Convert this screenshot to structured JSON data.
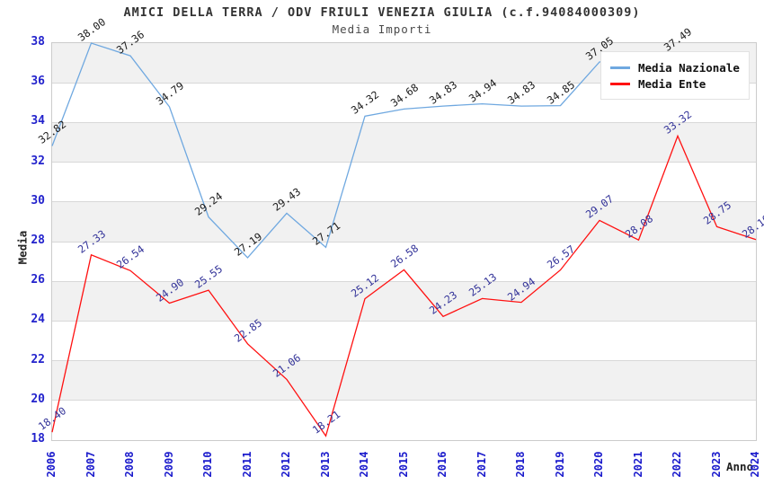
{
  "header": {
    "title": "AMICI DELLA TERRA / ODV FRIULI VENEZIA GIULIA (c.f.94084000309)",
    "subtitle": "Media Importi"
  },
  "axes": {
    "y_label": "Media",
    "x_label": "Anno",
    "y_ticks": [
      38,
      36,
      34,
      32,
      30,
      28,
      26,
      24,
      22,
      20,
      18
    ]
  },
  "legend": {
    "items": [
      {
        "label": "Media Nazionale",
        "color": "#6FA8E0"
      },
      {
        "label": "Media Ente",
        "color": "#FF1111"
      }
    ]
  },
  "colors": {
    "nazionale_line": "#6FA8E0",
    "ente_line": "#FF1111",
    "nazionale_label_text": "#1a1a1a",
    "ente_label_text": "#333399",
    "tick_text": "#2222cc",
    "band_gray": "#f1f1f1",
    "gridline": "#d8d8d8"
  },
  "chart_data": {
    "type": "line",
    "title": "AMICI DELLA TERRA / ODV FRIULI VENEZIA GIULIA (c.f.94084000309)",
    "subtitle": "Media Importi",
    "xlabel": "Anno",
    "ylabel": "Media",
    "ylim": [
      18,
      38
    ],
    "grid": true,
    "legend_position": "top-right",
    "categories": [
      2006,
      2007,
      2008,
      2009,
      2010,
      2011,
      2012,
      2013,
      2014,
      2015,
      2016,
      2017,
      2018,
      2019,
      2020,
      2021,
      2022,
      2023,
      2024
    ],
    "series": [
      {
        "name": "Media Nazionale",
        "color": "#6FA8E0",
        "label_color": "#1a1a1a",
        "values": [
          32.82,
          38.0,
          37.36,
          34.79,
          29.24,
          27.19,
          29.43,
          27.71,
          34.32,
          34.68,
          34.83,
          34.94,
          34.83,
          34.85,
          37.05,
          null,
          37.49,
          null,
          null
        ]
      },
      {
        "name": "Media Ente",
        "color": "#FF1111",
        "label_color": "#333399",
        "values": [
          18.4,
          27.33,
          26.54,
          24.9,
          25.55,
          22.85,
          21.06,
          18.21,
          25.12,
          26.58,
          24.23,
          25.13,
          24.94,
          26.57,
          29.07,
          28.08,
          33.32,
          28.75,
          28.1
        ]
      }
    ]
  }
}
